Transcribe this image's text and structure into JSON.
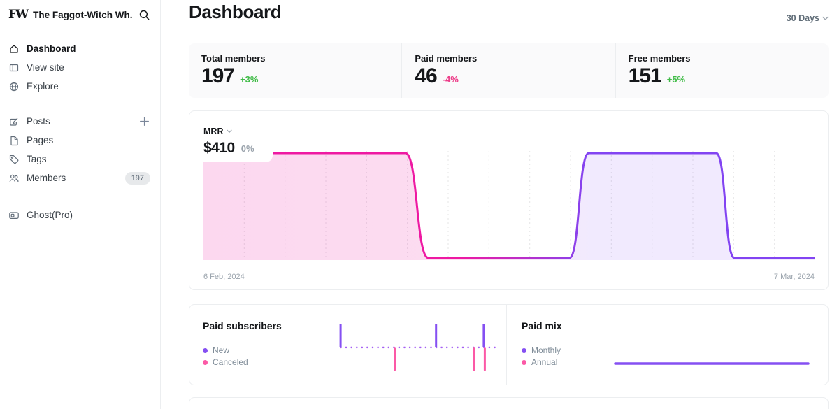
{
  "sidebar": {
    "logo_text": "FW",
    "site_title": "The Faggot-Witch Wh...",
    "nav_primary": [
      {
        "label": "Dashboard",
        "active": true
      },
      {
        "label": "View site"
      },
      {
        "label": "Explore"
      }
    ],
    "nav_content": [
      {
        "label": "Posts",
        "has_add_button": true
      },
      {
        "label": "Pages"
      },
      {
        "label": "Tags"
      },
      {
        "label": "Members",
        "badge": "197"
      }
    ],
    "nav_footer": [
      {
        "label": "Ghost(Pro)"
      }
    ]
  },
  "header": {
    "title": "Dashboard",
    "range_selector": "30 Days"
  },
  "stats": [
    {
      "label": "Total members",
      "value": "197",
      "delta": "+3%",
      "direction": "up"
    },
    {
      "label": "Paid members",
      "value": "46",
      "delta": "-4%",
      "direction": "down"
    },
    {
      "label": "Free members",
      "value": "151",
      "delta": "+5%",
      "direction": "up"
    }
  ],
  "mrr": {
    "metric_label": "MRR",
    "value": "$410",
    "delta": "0%",
    "date_start": "6 Feb, 2024",
    "date_end": "7 Mar, 2024"
  },
  "paid_subscribers": {
    "title": "Paid subscribers",
    "legend": [
      {
        "label": "New"
      },
      {
        "label": "Canceled"
      }
    ]
  },
  "paid_mix": {
    "title": "Paid mix",
    "legend": [
      {
        "label": "Monthly"
      },
      {
        "label": "Annual"
      }
    ]
  },
  "colors": {
    "accent_green": "#3fbb46",
    "accent_pink": "#ed3e8a",
    "mrr_line_start": "#ee19a2",
    "mrr_line_end": "#8244f2",
    "subs_new": "#8550f2",
    "subs_canceled": "#fb59a6",
    "subs_dots": "#a45ef3",
    "mix_monthly": "#8550f2",
    "mix_annual": "#fb59a6",
    "grid_line": "#e4e4e6",
    "muted_text": "#9aa3ac"
  },
  "chart_data": [
    {
      "id": "mrr",
      "type": "area",
      "title": "MRR",
      "current_value_usd": 410,
      "delta_pct": 0,
      "x_start_label": "6 Feb, 2024",
      "x_end_label": "7 Mar, 2024",
      "y_max": 410,
      "gridlines": 15,
      "points_xfrac_value": [
        [
          0,
          410
        ],
        [
          0.33,
          410
        ],
        [
          0.368,
          0
        ],
        [
          0.598,
          0
        ],
        [
          0.63,
          410
        ],
        [
          0.838,
          410
        ],
        [
          0.868,
          0
        ],
        [
          1,
          0
        ]
      ],
      "description": "MRR flat at $410 from 6 Feb, drops to $0 around 16 Feb, returns to $410 around 24 Feb, drops back to $0 around 2 Mar through 7 Mar; line/fill gradient pink to purple"
    },
    {
      "id": "paid_subscribers",
      "type": "bar",
      "days": 30,
      "series": [
        {
          "name": "New",
          "values": [
            1,
            0,
            0,
            0,
            0,
            0,
            0,
            0,
            0,
            0,
            0,
            0,
            0,
            0,
            0,
            0,
            0,
            0,
            1,
            0,
            0,
            0,
            0,
            0,
            0,
            0,
            0,
            1,
            0,
            0
          ]
        },
        {
          "name": "Canceled",
          "values": [
            0,
            0,
            0,
            0,
            0,
            0,
            0,
            0,
            0,
            0,
            1,
            0,
            0,
            0,
            0,
            0,
            0,
            0,
            0,
            0,
            0,
            0,
            0,
            0,
            0,
            1,
            0,
            1,
            0,
            0
          ]
        }
      ],
      "baseline_dots": true,
      "legend_position": "left"
    },
    {
      "id": "paid_mix",
      "type": "line",
      "series": [
        {
          "name": "Monthly",
          "values_pct": [
            100,
            100
          ]
        },
        {
          "name": "Annual",
          "values_pct": [
            0,
            0
          ]
        }
      ],
      "note": "Monthly line flat at 100%; Annual not visible",
      "legend_position": "left"
    }
  ]
}
